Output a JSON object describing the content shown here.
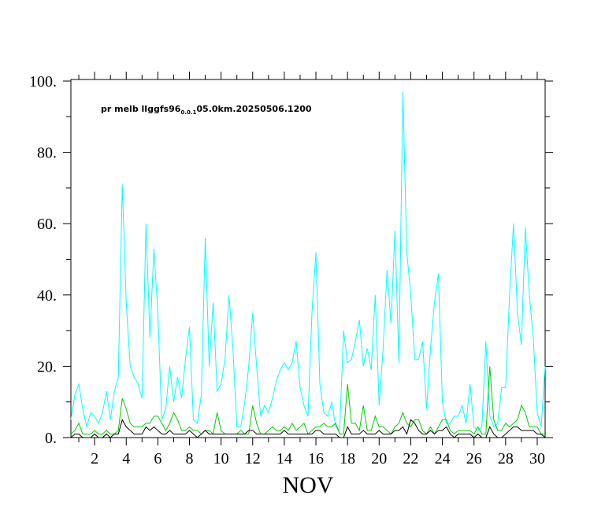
{
  "chart_data": {
    "type": "line",
    "title": {
      "main": "pr melb llggfs96",
      "subscript": "0.0.1",
      "suffix": "05.0km.20250506.1200"
    },
    "xlabel": "NOV",
    "x": [
      0.5,
      0.75,
      1,
      1.25,
      1.5,
      1.75,
      2,
      2.25,
      2.5,
      2.75,
      3,
      3.25,
      3.5,
      3.75,
      4,
      4.25,
      4.5,
      4.75,
      5,
      5.25,
      5.5,
      5.75,
      6,
      6.25,
      6.5,
      6.75,
      7,
      7.25,
      7.5,
      7.75,
      8,
      8.25,
      8.5,
      8.75,
      9,
      9.25,
      9.5,
      9.75,
      10,
      10.25,
      10.5,
      10.75,
      11,
      11.25,
      11.5,
      11.75,
      12,
      12.25,
      12.5,
      12.75,
      13,
      13.25,
      13.5,
      13.75,
      14,
      14.25,
      14.5,
      14.75,
      15,
      15.25,
      15.5,
      15.75,
      16,
      16.25,
      16.5,
      16.75,
      17,
      17.25,
      17.5,
      17.75,
      18,
      18.25,
      18.5,
      18.75,
      19,
      19.25,
      19.5,
      19.75,
      20,
      20.25,
      20.5,
      20.75,
      21,
      21.25,
      21.5,
      21.75,
      22,
      22.25,
      22.5,
      22.75,
      23,
      23.25,
      23.5,
      23.75,
      24,
      24.25,
      24.5,
      24.75,
      25,
      25.25,
      25.5,
      25.75,
      26,
      26.25,
      26.5,
      26.75,
      27,
      27.25,
      27.5,
      27.75,
      28,
      28.25,
      28.5,
      28.75,
      29,
      29.25,
      29.5,
      29.75,
      30,
      30.25,
      30.5
    ],
    "series": [
      {
        "color": "#00ffff",
        "values": [
          5,
          12,
          15,
          8,
          3,
          7,
          6,
          4,
          7,
          13,
          5,
          13,
          17,
          71,
          38,
          20,
          17,
          15,
          11,
          60,
          28,
          53,
          35,
          5,
          8,
          20,
          10,
          17,
          11,
          22,
          31,
          5,
          4,
          12,
          56,
          20,
          38,
          13,
          15,
          22,
          40,
          25,
          3,
          3,
          10,
          20,
          35,
          20,
          6,
          9,
          7,
          11,
          16,
          19,
          21,
          19,
          21,
          27,
          14,
          9,
          6,
          35,
          52,
          15,
          7,
          6,
          10,
          3,
          2,
          30,
          21,
          22,
          27,
          33,
          20,
          25,
          19,
          40,
          9,
          25,
          47,
          32,
          58,
          21,
          97,
          52,
          40,
          22,
          22,
          27,
          8,
          25,
          38,
          46,
          10,
          4,
          4,
          6,
          6,
          9,
          4,
          15,
          3,
          2,
          3,
          27,
          6,
          3,
          4,
          14,
          14,
          40,
          60,
          35,
          26,
          59,
          40,
          28,
          7,
          3,
          20
        ]
      },
      {
        "color": "#00cc00",
        "values": [
          1,
          2,
          4,
          1,
          1,
          1,
          2,
          1,
          1,
          2,
          1,
          1,
          2,
          11,
          8,
          4,
          3,
          3,
          3,
          4,
          4,
          6,
          6,
          4,
          2,
          4,
          7,
          5,
          2,
          2,
          3,
          2,
          2,
          1,
          2,
          2,
          1,
          7,
          2,
          1,
          1,
          1,
          1,
          2,
          1,
          1,
          9,
          4,
          1,
          1,
          2,
          3,
          2,
          2,
          3,
          2,
          4,
          2,
          3,
          4,
          1,
          2,
          3,
          3,
          4,
          3,
          3,
          4,
          1,
          1,
          15,
          4,
          4,
          2,
          9,
          2,
          2,
          6,
          3,
          3,
          2,
          1,
          3,
          4,
          7,
          4,
          3,
          5,
          5,
          2,
          1,
          3,
          1,
          3,
          5,
          5,
          2,
          1,
          2,
          2,
          2,
          2,
          1,
          3,
          1,
          1,
          20,
          5,
          2,
          2,
          4,
          3,
          4,
          5,
          9,
          7,
          3,
          3,
          3,
          1,
          1
        ]
      },
      {
        "color": "#000000",
        "values": [
          0,
          1,
          1,
          0,
          0,
          0,
          1,
          0,
          0,
          1,
          0,
          1,
          1,
          5,
          3,
          2,
          1,
          1,
          1,
          3,
          2,
          3,
          2,
          1,
          1,
          2,
          1,
          1,
          1,
          1,
          2,
          1,
          0,
          1,
          2,
          1,
          1,
          1,
          1,
          1,
          1,
          1,
          1,
          1,
          1,
          2,
          2,
          1,
          1,
          1,
          1,
          1,
          1,
          1,
          2,
          1,
          1,
          1,
          1,
          1,
          1,
          1,
          2,
          2,
          1,
          1,
          1,
          1,
          0,
          0,
          3,
          1,
          1,
          1,
          2,
          1,
          1,
          1,
          2,
          1,
          1,
          1,
          2,
          2,
          3,
          1,
          5,
          4,
          2,
          1,
          1,
          2,
          1,
          2,
          2,
          3,
          1,
          0,
          1,
          1,
          1,
          1,
          0,
          1,
          0,
          0,
          3,
          1,
          0,
          0,
          1,
          2,
          3,
          3,
          2,
          2,
          2,
          2,
          1,
          1,
          0
        ]
      }
    ],
    "xlim": [
      0.5,
      30.5
    ],
    "xticks": [
      2,
      4,
      6,
      8,
      10,
      12,
      14,
      16,
      18,
      20,
      22,
      24,
      26,
      28,
      30
    ],
    "xminorticks": [
      1,
      3,
      5,
      7,
      9,
      11,
      13,
      15,
      17,
      19,
      21,
      23,
      25,
      27,
      29
    ],
    "ylim": [
      0,
      100
    ],
    "yticks": [
      {
        "value": 0,
        "label": "0."
      },
      {
        "value": 20,
        "label": "20."
      },
      {
        "value": 40,
        "label": "40."
      },
      {
        "value": 60,
        "label": "60."
      },
      {
        "value": 80,
        "label": "80."
      },
      {
        "value": 100,
        "label": "100."
      }
    ],
    "yminorticks": [
      10,
      30,
      50,
      70,
      90
    ]
  }
}
